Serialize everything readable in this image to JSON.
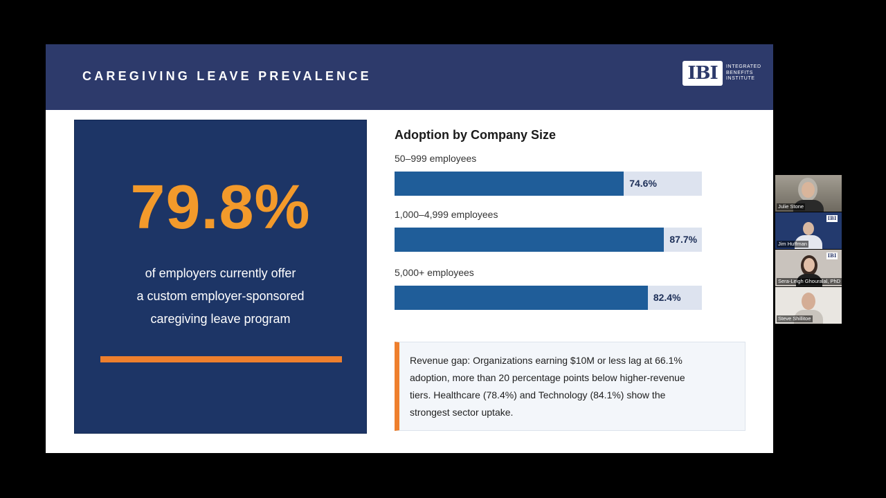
{
  "slide": {
    "title": "CAREGIVING LEAVE PREVALENCE",
    "logo": {
      "mark": "IBI",
      "lines": [
        "INTEGRATED",
        "BENEFITS",
        "INSTITUTE"
      ]
    }
  },
  "stat": {
    "value": "79.8%",
    "description_lines": [
      "of employers currently offer",
      "a custom employer-sponsored",
      "caregiving leave program"
    ]
  },
  "chart_data": {
    "type": "bar",
    "title": "Adoption by Company Size",
    "categories": [
      "50–999 employees",
      "1,000–4,999 employees",
      "5,000+ employees"
    ],
    "values": [
      74.6,
      87.7,
      82.4
    ],
    "value_labels": [
      "74.6%",
      "87.7%",
      "82.4%"
    ],
    "ylim": [
      0,
      100
    ]
  },
  "note": {
    "lines": [
      "Revenue gap: Organizations earning $10M or less lag at 66.1%",
      "adoption, more than 20 percentage points below higher-revenue",
      "tiers. Healthcare (78.4%) and Technology (84.1%) show the",
      "strongest sector uptake."
    ]
  },
  "participants": [
    {
      "name": "Julie Stone"
    },
    {
      "name": "Jim Huffman",
      "logo": "IBI"
    },
    {
      "name": "Sera-Leigh Ghouralal, PhD",
      "logo": "IBI"
    },
    {
      "name": "Steve Shillitoe"
    }
  ],
  "colors": {
    "header": "#2d3a6b",
    "card": "#1d3566",
    "accent": "#f39a2b",
    "rule": "#ee7f2d",
    "bar": "#1f5d99",
    "track": "#dde3ef"
  }
}
